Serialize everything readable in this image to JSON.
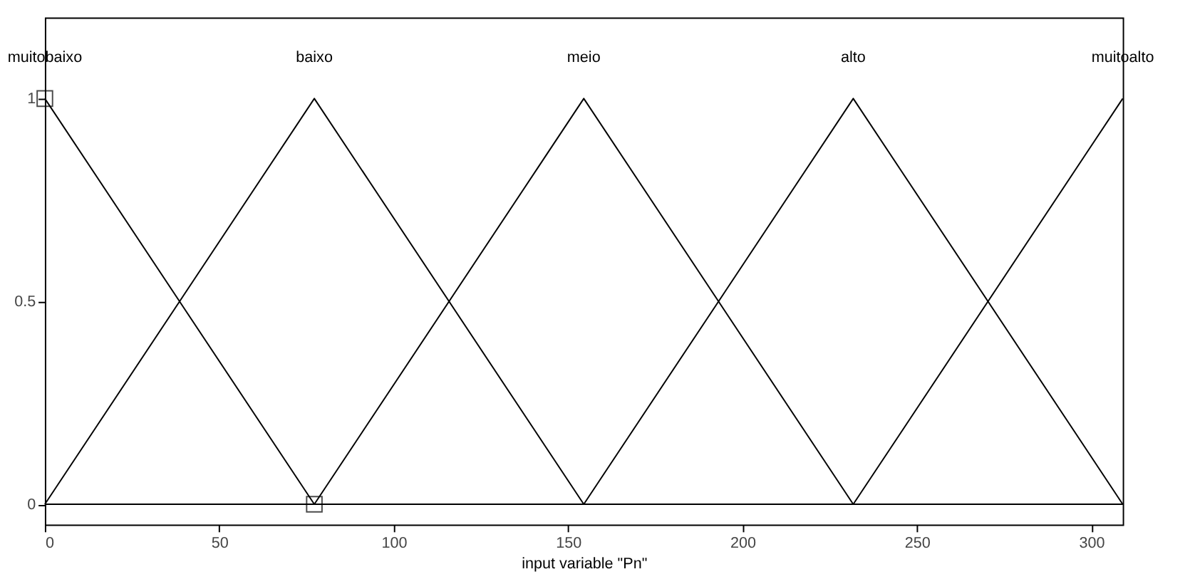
{
  "chart_data": {
    "type": "line",
    "xlabel": "input variable \"Pn\"",
    "xlim": [
      0,
      309
    ],
    "xticks": [
      0,
      50,
      100,
      150,
      200,
      250,
      300
    ],
    "ylim": [
      -0.05,
      1.2
    ],
    "yticks": [
      0,
      0.5,
      1
    ],
    "grid": false,
    "marker": "none",
    "line_style": "solid",
    "series": [
      {
        "name": "muitobaixo",
        "color": "#000000",
        "x": [
          0,
          77.25,
          309
        ],
        "values": [
          1,
          0,
          0
        ]
      },
      {
        "name": "baixo",
        "color": "#000000",
        "x": [
          0,
          77.25,
          154.5,
          309
        ],
        "values": [
          0,
          1,
          0,
          0
        ]
      },
      {
        "name": "meio",
        "color": "#000000",
        "x": [
          0,
          77.25,
          154.5,
          231.75,
          309
        ],
        "values": [
          0,
          0,
          1,
          0,
          0
        ]
      },
      {
        "name": "alto",
        "color": "#000000",
        "x": [
          0,
          154.5,
          231.75,
          309
        ],
        "values": [
          0,
          0,
          1,
          0
        ]
      },
      {
        "name": "muitoalto",
        "color": "#000000",
        "x": [
          0,
          231.75,
          309
        ],
        "values": [
          0,
          0,
          1
        ]
      },
      {
        "type": "scatter",
        "marker": "square",
        "color": "#000000",
        "x": [
          0,
          77.25
        ],
        "values": [
          1,
          0
        ]
      }
    ]
  }
}
